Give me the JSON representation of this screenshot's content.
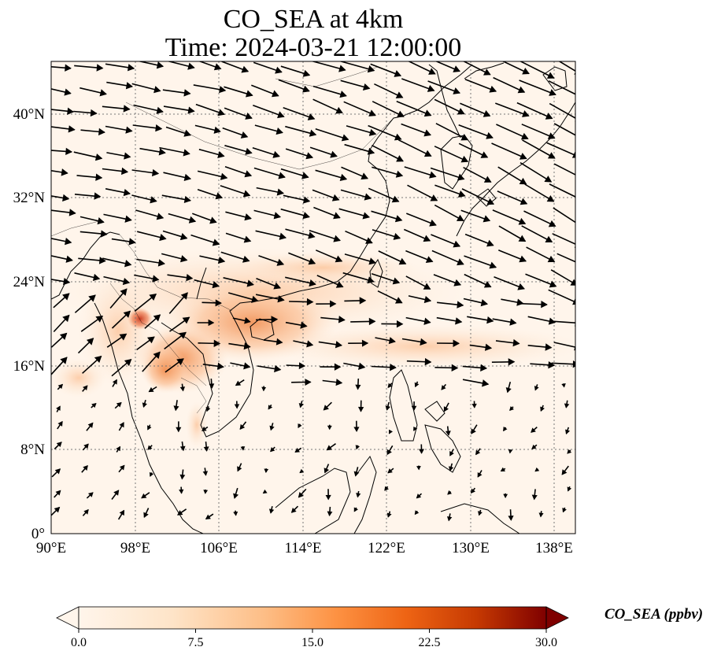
{
  "title": {
    "line1": "CO_SEA at 4km",
    "line2": "Time: 2024-03-21 12:00:00"
  },
  "map": {
    "lon_range": [
      90,
      140
    ],
    "lat_range": [
      0,
      45
    ],
    "lon_ticks": [
      "90°E",
      "98°E",
      "106°E",
      "114°E",
      "122°E",
      "130°E",
      "138°E"
    ],
    "lat_ticks": [
      "0°",
      "8°N",
      "16°N",
      "24°N",
      "32°N",
      "40°N"
    ],
    "gridlines": true,
    "wind_vectors": true
  },
  "colorbar": {
    "label": "CO_SEA (ppbv)",
    "min": 0.0,
    "max": 30.0,
    "ticks": [
      "0.0",
      "7.5",
      "15.0",
      "22.5",
      "30.0"
    ],
    "extend": "both",
    "colormap": [
      "#fff5eb",
      "#fdd2a5",
      "#fd9243",
      "#df4f05",
      "#a33003",
      "#7f0000"
    ]
  }
}
